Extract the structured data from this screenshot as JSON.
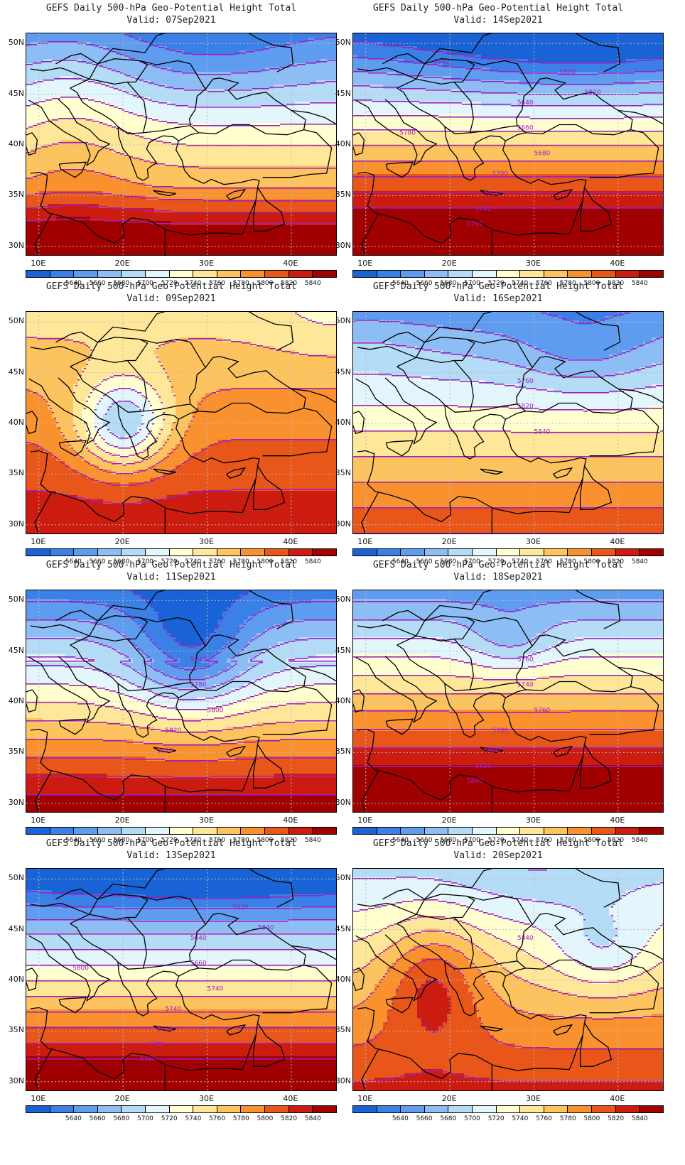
{
  "colors": {
    "levels": [
      "#1a63d6",
      "#3a80e6",
      "#5e9cf0",
      "#8cbdf4",
      "#b4dcf6",
      "#e2f6fc",
      "#ffffd0",
      "#ffe79a",
      "#fdc35e",
      "#f9922e",
      "#e8561a",
      "#cc1c10",
      "#a10000"
    ],
    "contour": "#a020c0",
    "coast": "#000000",
    "grid": "#bbbbbb"
  },
  "colorbar": {
    "labels": [
      "5640",
      "5660",
      "5680",
      "5700",
      "5720",
      "5740",
      "5760",
      "5780",
      "5800",
      "5820",
      "5840"
    ]
  },
  "axes": {
    "lat_labels": [
      "50N",
      "45N",
      "40N",
      "35N",
      "30N"
    ],
    "lon_labels": [
      "10E",
      "20E",
      "30E",
      "40E"
    ]
  },
  "panels": [
    {
      "title": "GEFS Daily 500-hPa Geo-Potential Height Total",
      "valid": "Valid: 07Sep2021",
      "pattern": "ridge_west",
      "contour_labels": []
    },
    {
      "title": "GEFS Daily 500-hPa Geo-Potential Height Total",
      "valid": "Valid: 14Sep2021",
      "pattern": "trough_north",
      "contour_labels": [
        "5640",
        "5660",
        "5680",
        "5700",
        "5720",
        "5740",
        "5760",
        "5780",
        "5800",
        "5820",
        "5840"
      ]
    },
    {
      "title": "GEFS Daily 500-hPa Geo-Potential Height Total",
      "valid": "Valid: 09Sep2021",
      "pattern": "cutoff_low",
      "contour_labels": []
    },
    {
      "title": "GEFS Daily 500-hPa Geo-Potential Height Total",
      "valid": "Valid: 16Sep2021",
      "pattern": "flat_ridge",
      "contour_labels": [
        "5760",
        "5820",
        "5840"
      ]
    },
    {
      "title": "GEFS Daily 500-hPa Geo-Potential Height Total",
      "valid": "Valid: 11Sep2021",
      "pattern": "low_ukraine",
      "contour_labels": [
        "5740",
        "5780",
        "5800",
        "5820",
        "5840"
      ]
    },
    {
      "title": "GEFS Daily 500-hPa Geo-Potential Height Total",
      "valid": "Valid: 18Sep2021",
      "pattern": "weak_low",
      "contour_labels": [
        "5760",
        "5740",
        "5760",
        "5780",
        "5800",
        "5820",
        "5840"
      ]
    },
    {
      "title": "GEFS Daily 500-hPa Geo-Potential Height Total",
      "valid": "Valid: 13Sep2021",
      "pattern": "zonal_trough",
      "contour_labels": [
        "5640",
        "5660",
        "5740",
        "5740",
        "5760",
        "5780",
        "5760",
        "5800",
        "5820",
        "5840"
      ]
    },
    {
      "title": "GEFS Daily 500-hPa Geo-Potential Height Total",
      "valid": "Valid: 20Sep2021",
      "pattern": "ridge_balkans",
      "contour_labels": [
        "5840"
      ]
    }
  ]
}
